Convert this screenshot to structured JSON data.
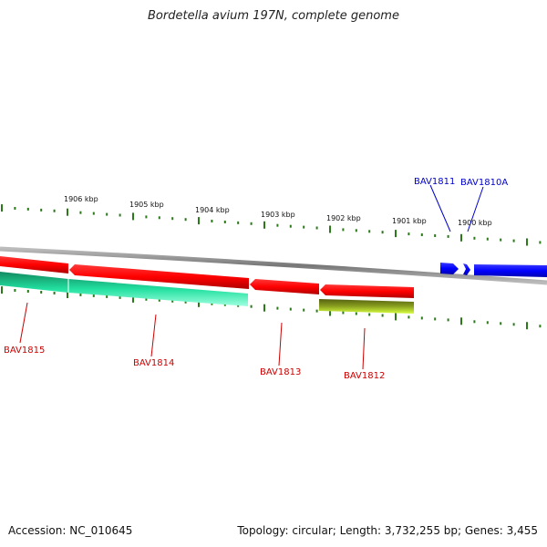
{
  "title": "Bordetella avium 197N, complete genome",
  "footer": {
    "accession": "Accession: NC_010645",
    "summary": "Topology: circular; Length: 3,732,255 bp; Genes: 3,455"
  },
  "ticks": [
    "1906 kbp",
    "1905 kbp",
    "1904 kbp",
    "1903 kbp",
    "1902 kbp",
    "1901 kbp",
    "1900 kbp"
  ],
  "genes": [
    {
      "name": "BAV1811",
      "strand": "forward",
      "color": "#0000cc"
    },
    {
      "name": "BAV1810A",
      "strand": "forward",
      "color": "#0000cc"
    },
    {
      "name": "BAV1815",
      "strand": "reverse",
      "color": "#cc0000"
    },
    {
      "name": "BAV1814",
      "strand": "reverse",
      "color": "#cc0000"
    },
    {
      "name": "BAV1813",
      "strand": "reverse",
      "color": "#cc0000"
    },
    {
      "name": "BAV1812",
      "strand": "reverse",
      "color": "#cc0000"
    }
  ],
  "colors": {
    "backbone": "#888888",
    "tick": "#2a7a1a",
    "forward_gene": "#0000ff",
    "reverse_gene": "#ff0000",
    "feature_teal": "#22e0a0",
    "feature_olive": "#8aa020"
  }
}
